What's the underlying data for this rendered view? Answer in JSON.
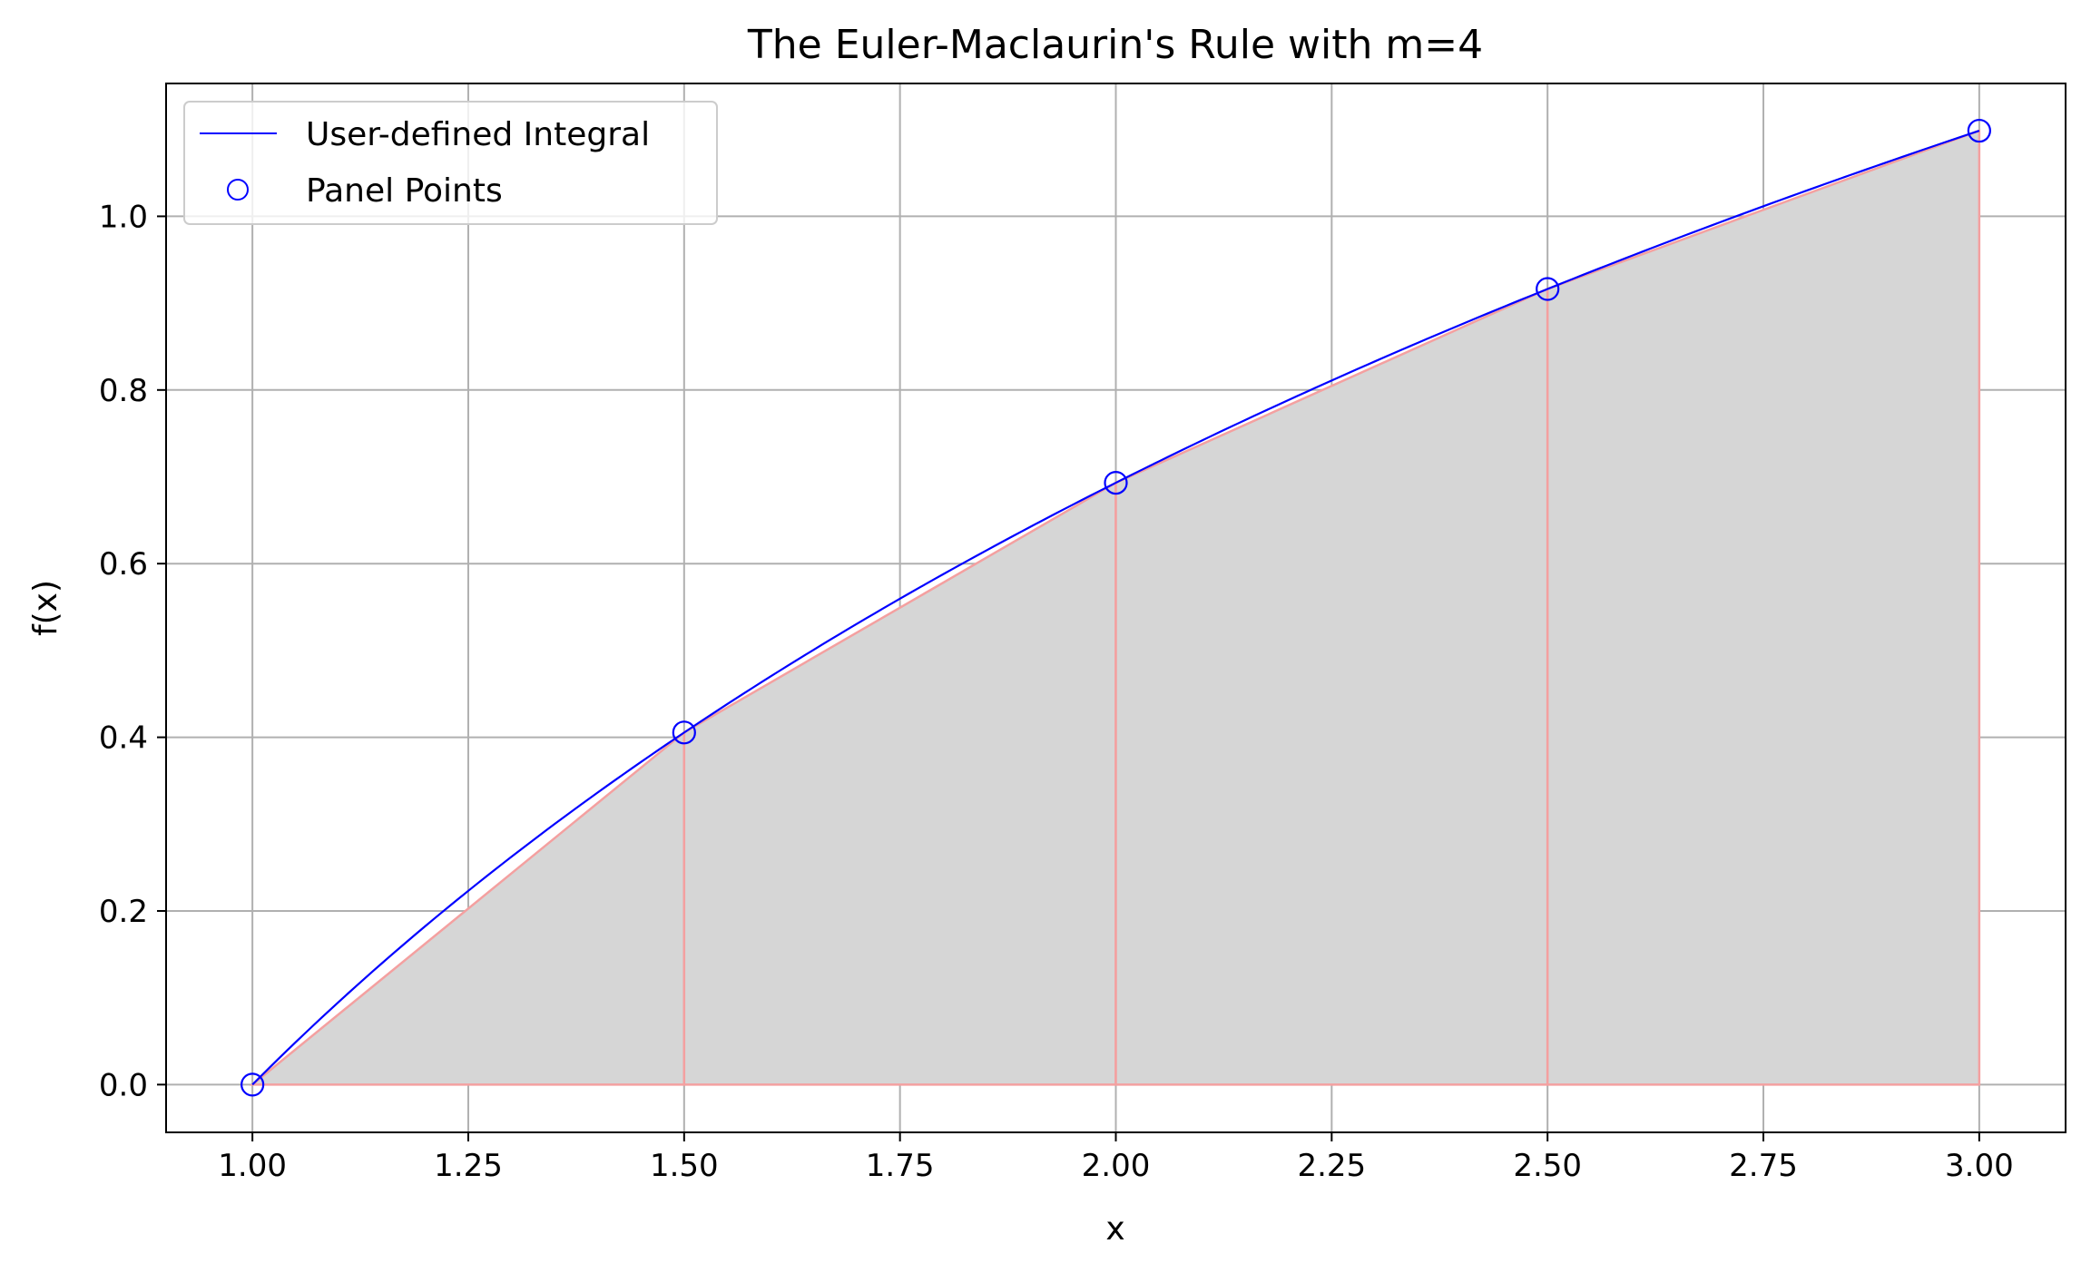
{
  "chart_data": {
    "type": "line",
    "title": "The Euler-Maclaurin's Rule with m=4",
    "xlabel": "x",
    "ylabel": "f(x)",
    "xlim": [
      0.9,
      3.1
    ],
    "ylim": [
      -0.055,
      1.153
    ],
    "grid": true,
    "legend_position": "upper-left",
    "x_ticks": [
      "1.00",
      "1.25",
      "1.50",
      "1.75",
      "2.00",
      "2.25",
      "2.50",
      "2.75",
      "3.00"
    ],
    "y_ticks": [
      "0.0",
      "0.2",
      "0.4",
      "0.6",
      "0.8",
      "1.0"
    ],
    "series": [
      {
        "name": "User-defined Integral",
        "kind": "line",
        "color": "#0000ff",
        "function": "ln(x)",
        "x": [
          1.0,
          1.1,
          1.2,
          1.3,
          1.4,
          1.5,
          1.6,
          1.7,
          1.8,
          1.9,
          2.0,
          2.1,
          2.2,
          2.3,
          2.4,
          2.5,
          2.6,
          2.7,
          2.8,
          2.9,
          3.0
        ],
        "y": [
          0.0,
          0.0953,
          0.1823,
          0.2624,
          0.3365,
          0.4055,
          0.47,
          0.5306,
          0.5878,
          0.6419,
          0.6931,
          0.7419,
          0.7885,
          0.8329,
          0.8755,
          0.9163,
          0.9555,
          0.9933,
          1.0296,
          1.0647,
          1.0986
        ]
      },
      {
        "name": "Panel Points",
        "kind": "scatter",
        "marker": "hollow-circle",
        "color": "#0000ff",
        "x": [
          1.0,
          1.5,
          2.0,
          2.5,
          3.0
        ],
        "y": [
          0.0,
          0.4055,
          0.6931,
          0.9163,
          1.0986
        ]
      },
      {
        "kind": "trapezoid-panels",
        "fill_color": "#d6d6d6",
        "edge_color": "#f4a0a0",
        "x": [
          1.0,
          1.5,
          2.0,
          2.5,
          3.0
        ],
        "y": [
          0.0,
          0.4055,
          0.6931,
          0.9163,
          1.0986
        ]
      }
    ]
  }
}
